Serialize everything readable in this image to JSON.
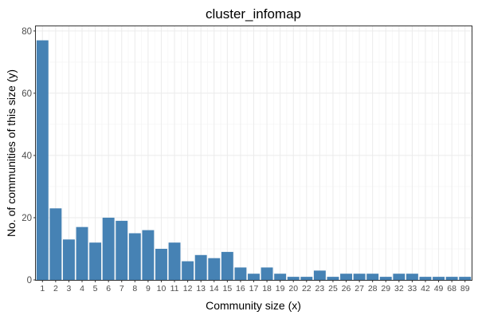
{
  "chart_data": {
    "type": "bar",
    "title": "cluster_infomap",
    "xlabel": "Community size (x)",
    "ylabel": "No. of communities of this size (y)",
    "categories": [
      "1",
      "2",
      "3",
      "4",
      "5",
      "6",
      "7",
      "8",
      "9",
      "10",
      "11",
      "12",
      "13",
      "14",
      "15",
      "16",
      "17",
      "18",
      "19",
      "20",
      "22",
      "23",
      "25",
      "26",
      "27",
      "28",
      "29",
      "32",
      "33",
      "42",
      "49",
      "68",
      "89"
    ],
    "values": [
      77,
      23,
      13,
      17,
      12,
      20,
      19,
      15,
      16,
      10,
      12,
      6,
      8,
      7,
      9,
      4,
      2,
      4,
      2,
      1,
      1,
      3,
      1,
      2,
      2,
      2,
      1,
      2,
      2,
      1,
      1,
      1,
      1
    ],
    "yticks": [
      "0",
      "20",
      "40",
      "60",
      "80"
    ],
    "ylim": [
      0,
      81.5
    ],
    "grid": true,
    "legend": "none",
    "colors": {
      "bar": "#4682b4",
      "panel_border": "#333333",
      "grid_major": "#ebebeb",
      "grid_minor": "#f5f5f5",
      "tick_text": "#4d4d4d"
    }
  }
}
